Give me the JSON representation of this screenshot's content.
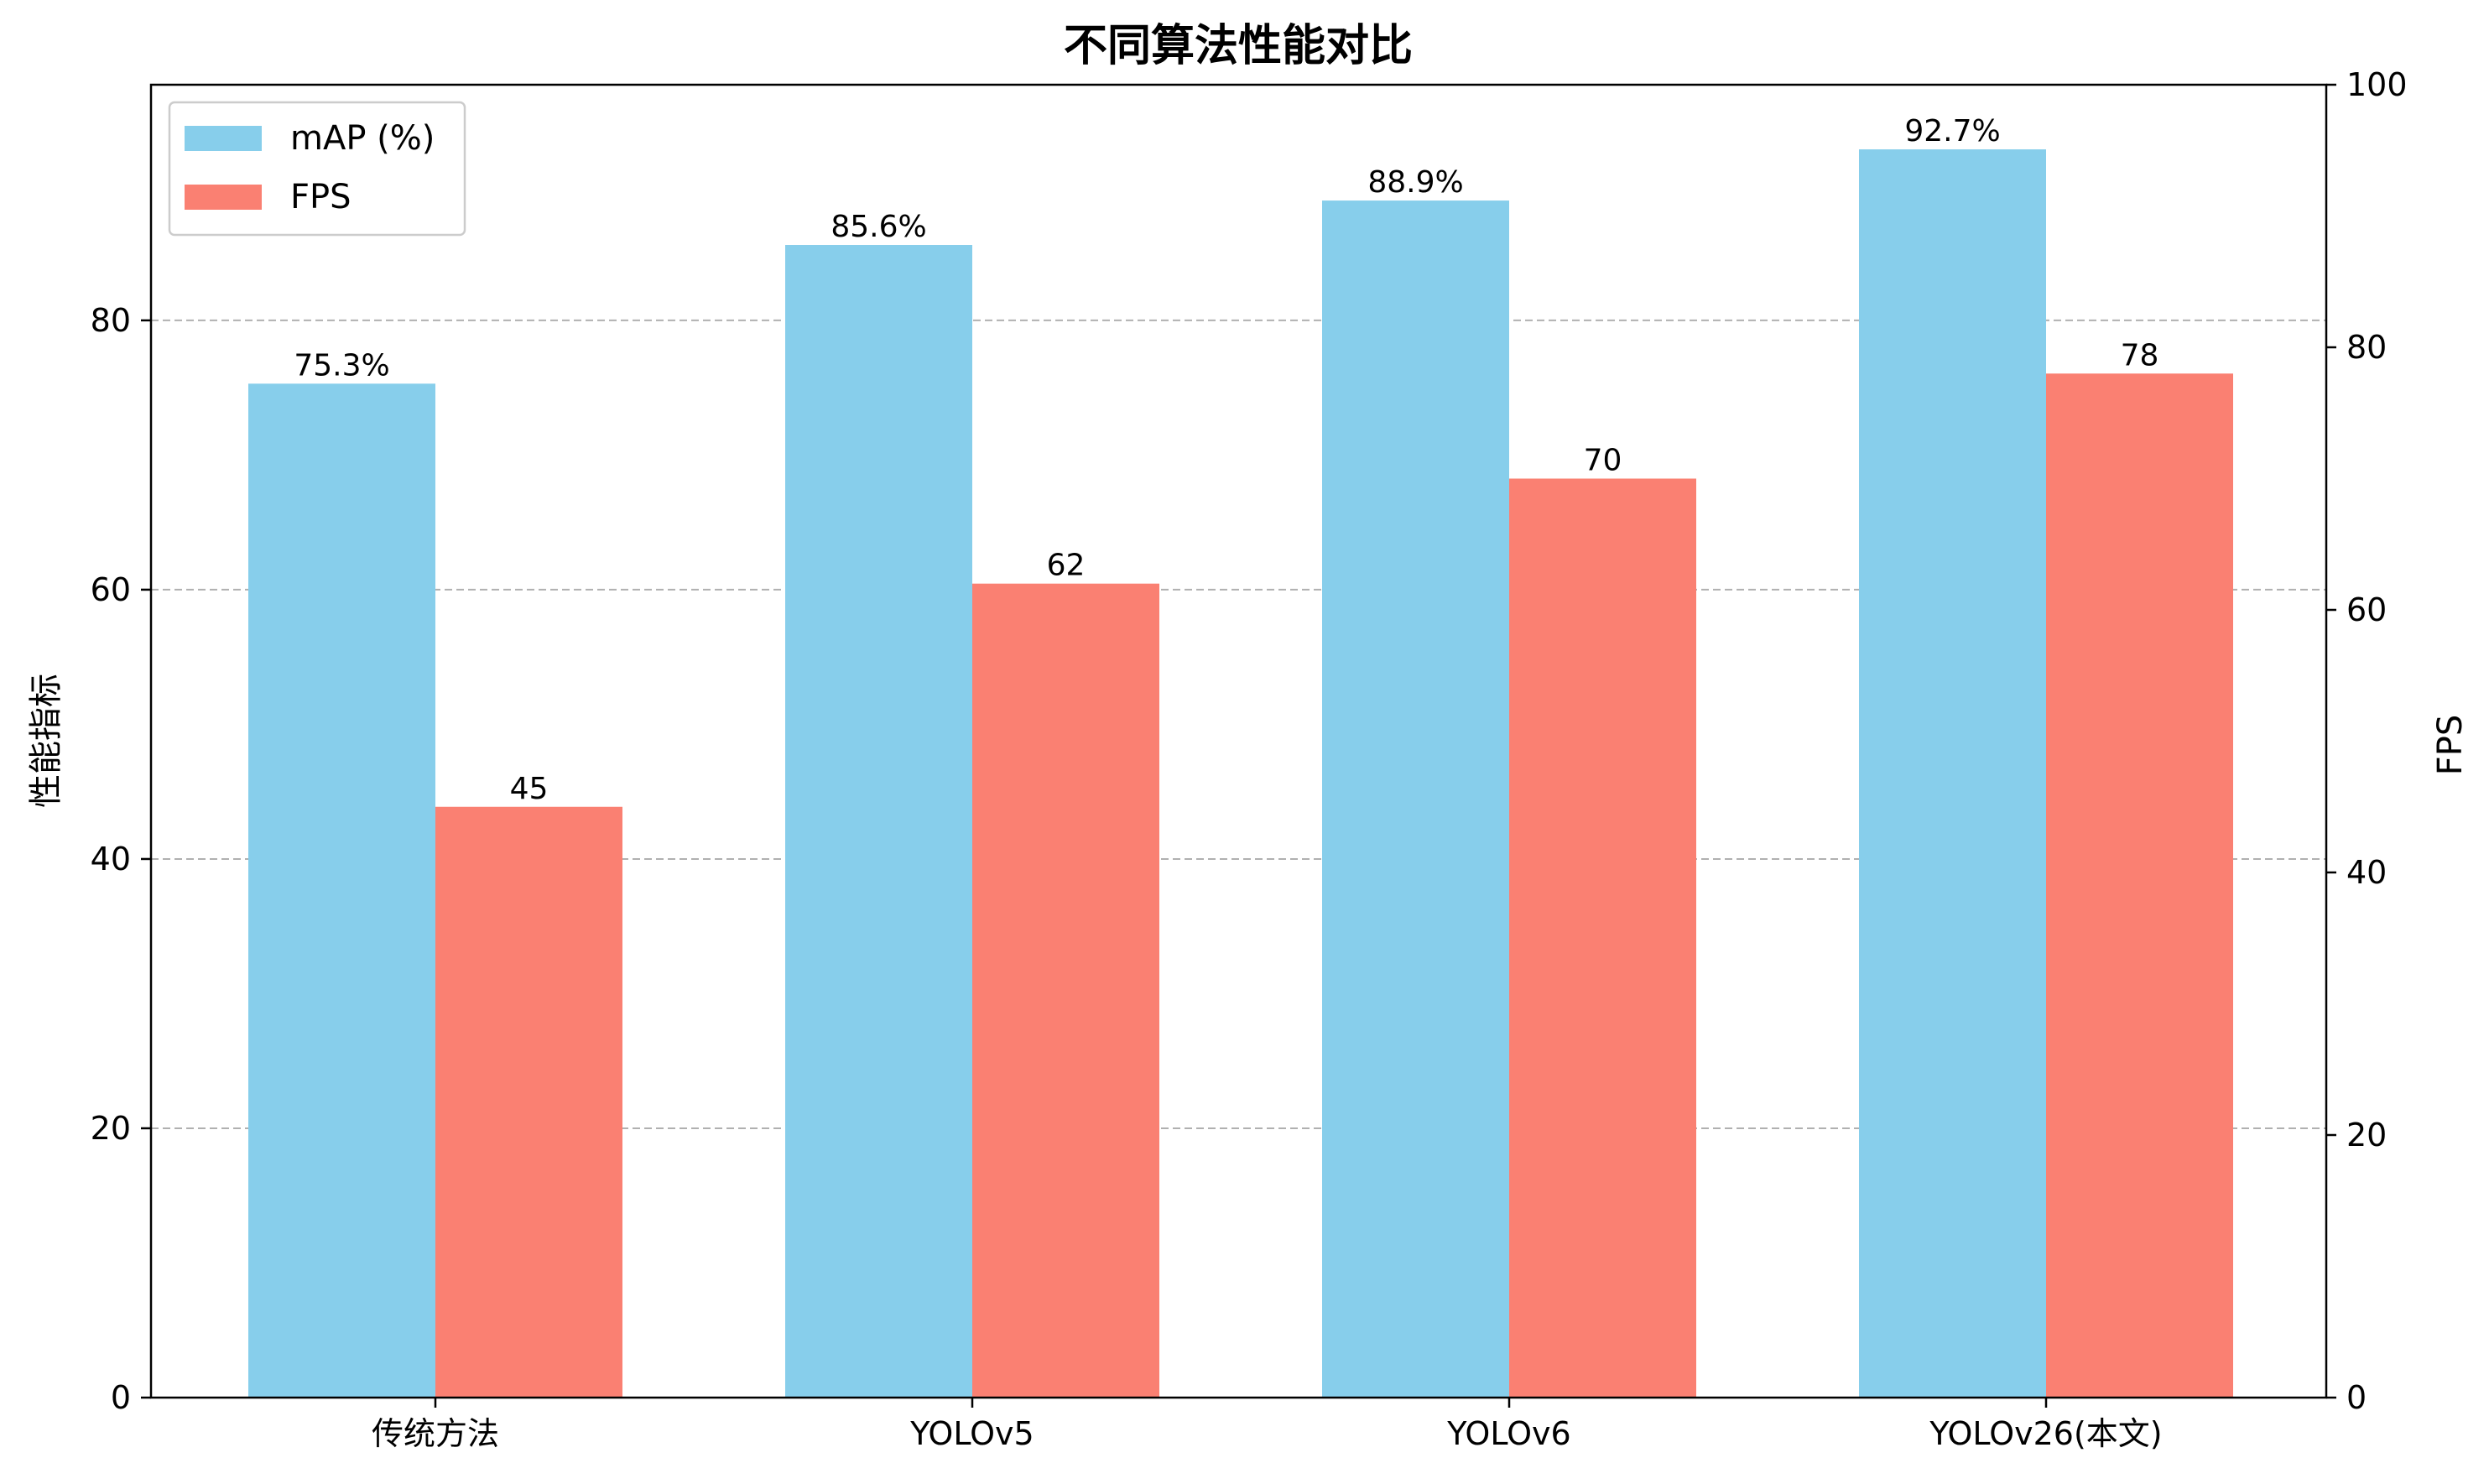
{
  "chart_data": {
    "type": "bar",
    "title": "不同算法性能对比",
    "categories": [
      "传统方法",
      "YOLOv5",
      "YOLOv6",
      "YOLOv26(本文)"
    ],
    "series": [
      {
        "name": "mAP (%)",
        "axis": "left",
        "color": "#87CEEB",
        "values": [
          75.3,
          85.6,
          88.9,
          92.7
        ],
        "labels": [
          "75.3%",
          "85.6%",
          "88.9%",
          "92.7%"
        ]
      },
      {
        "name": "FPS",
        "axis": "right",
        "color": "#FA8072",
        "values": [
          45,
          62,
          70,
          78
        ],
        "labels": [
          "45",
          "62",
          "70",
          "78"
        ]
      }
    ],
    "ylabel": "性能指标",
    "ylabel_right": "FPS",
    "ylim": [
      0,
      97.5
    ],
    "ylim_right": [
      0,
      100
    ],
    "yticks": [
      "0",
      "20",
      "40",
      "60",
      "80"
    ],
    "yticks_right": [
      "0",
      "20",
      "40",
      "60",
      "80",
      "100"
    ],
    "grid": "horizontal dashed",
    "legend_position": "top-left"
  }
}
